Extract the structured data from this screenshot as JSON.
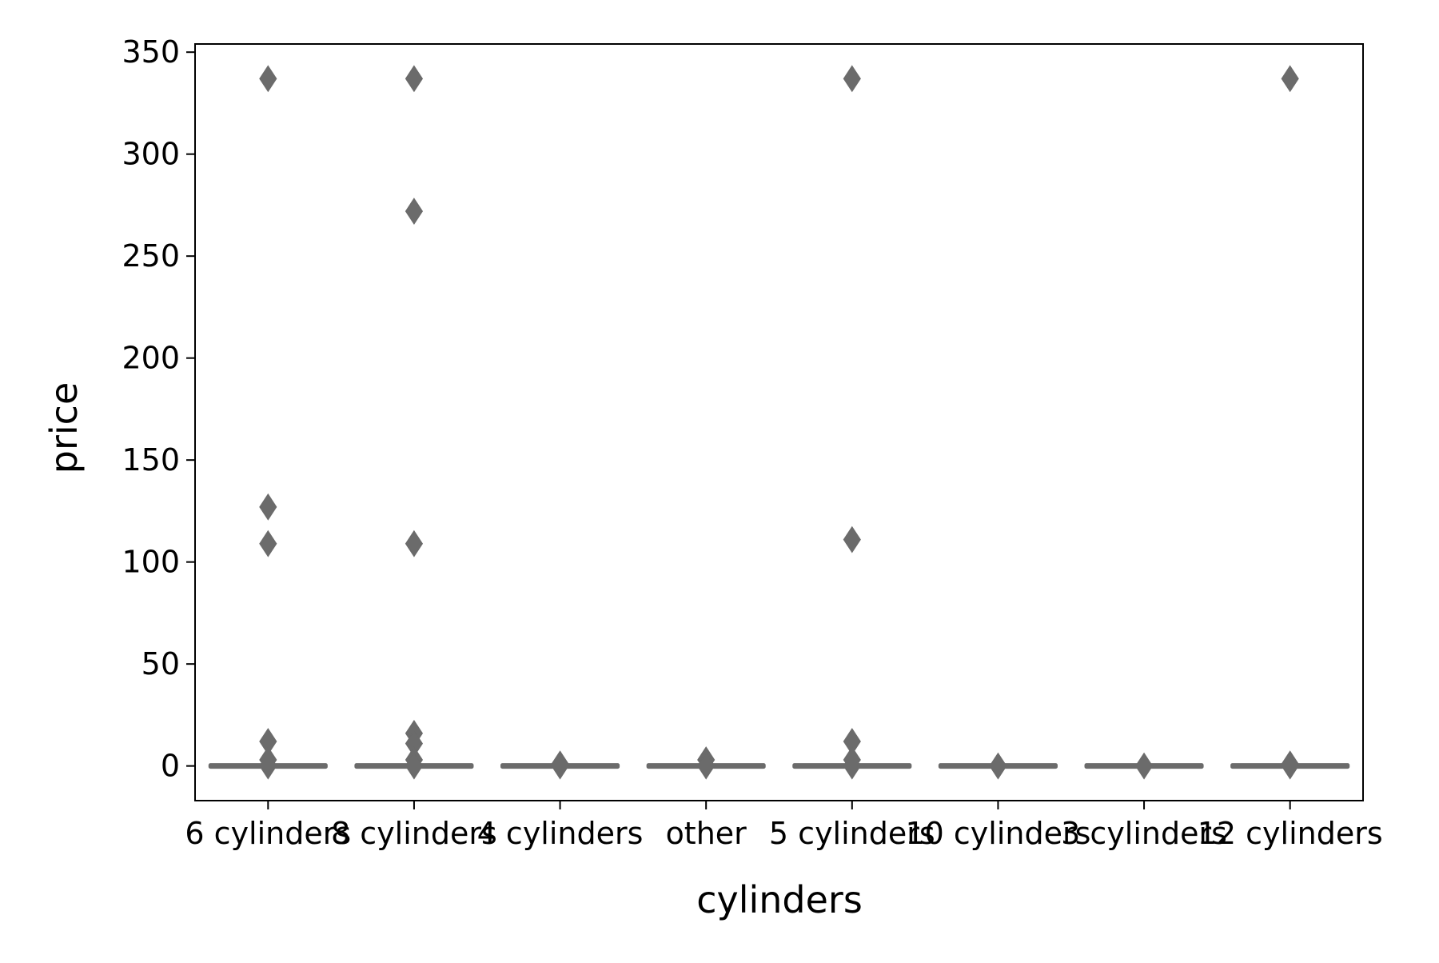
{
  "chart_data": {
    "type": "boxplot",
    "title": "",
    "xlabel": "cylinders",
    "ylabel": "price",
    "ylim": [
      -17,
      354
    ],
    "yticks": [
      0,
      50,
      100,
      150,
      200,
      250,
      300,
      350
    ],
    "categories": [
      "6 cylinders",
      "8 cylinders",
      "4 cylinders",
      "other",
      "5 cylinders",
      "10 cylinders",
      "3 cylinders",
      "12 cylinders"
    ],
    "series": [
      {
        "category": "6 cylinders",
        "q1": 0,
        "median": 0,
        "q3": 0,
        "whisker_low": 0,
        "whisker_high": 0,
        "outliers": [
          337,
          127,
          109,
          12,
          3,
          0
        ]
      },
      {
        "category": "8 cylinders",
        "q1": 0,
        "median": 0,
        "q3": 0,
        "whisker_low": 0,
        "whisker_high": 0,
        "outliers": [
          337,
          272,
          109,
          16,
          11,
          3,
          0
        ]
      },
      {
        "category": "4 cylinders",
        "q1": 0,
        "median": 0,
        "q3": 0,
        "whisker_low": 0,
        "whisker_high": 0,
        "outliers": [
          1,
          0
        ]
      },
      {
        "category": "other",
        "q1": 0,
        "median": 0,
        "q3": 0,
        "whisker_low": 0,
        "whisker_high": 0,
        "outliers": [
          3,
          0
        ]
      },
      {
        "category": "5 cylinders",
        "q1": 0,
        "median": 0,
        "q3": 0,
        "whisker_low": 0,
        "whisker_high": 0,
        "outliers": [
          337,
          111,
          12,
          3,
          0
        ]
      },
      {
        "category": "10 cylinders",
        "q1": 0,
        "median": 0,
        "q3": 0,
        "whisker_low": 0,
        "whisker_high": 0,
        "outliers": [
          0
        ]
      },
      {
        "category": "3 cylinders",
        "q1": 0,
        "median": 0,
        "q3": 0,
        "whisker_low": 0,
        "whisker_high": 0,
        "outliers": [
          0
        ]
      },
      {
        "category": "12 cylinders",
        "q1": 0,
        "median": 0,
        "q3": 0,
        "whisker_low": 0,
        "whisker_high": 0,
        "outliers": [
          337,
          1,
          0
        ]
      }
    ],
    "colors": {
      "box": "#6b6b6b",
      "axis": "#000000",
      "background": "#ffffff"
    },
    "grid": false,
    "legend": "none"
  }
}
